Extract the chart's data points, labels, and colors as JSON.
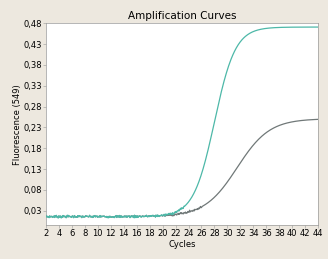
{
  "title": "Amplification Curves",
  "xlabel": "Cycles",
  "ylabel": "Fluorescence (549)",
  "ylim_min": -0.005,
  "ylim_max": 0.48,
  "yticks": [
    0.03,
    0.08,
    0.13,
    0.18,
    0.23,
    0.28,
    0.33,
    0.38,
    0.43,
    0.48
  ],
  "xlim_min": 2,
  "xlim_max": 44,
  "background_color": "#ede8df",
  "plot_bg_color": "#ffffff",
  "line1_color": "#4db8a8",
  "line2_color": "#707878",
  "title_fontsize": 7.5,
  "axis_label_fontsize": 6,
  "tick_fontsize": 6,
  "line1_baseline": 0.016,
  "line1_max": 0.455,
  "line1_midpoint": 28.0,
  "line1_steepness": 0.62,
  "line2_baseline": 0.016,
  "line2_max": 0.235,
  "line2_midpoint": 31.5,
  "line2_steepness": 0.4
}
